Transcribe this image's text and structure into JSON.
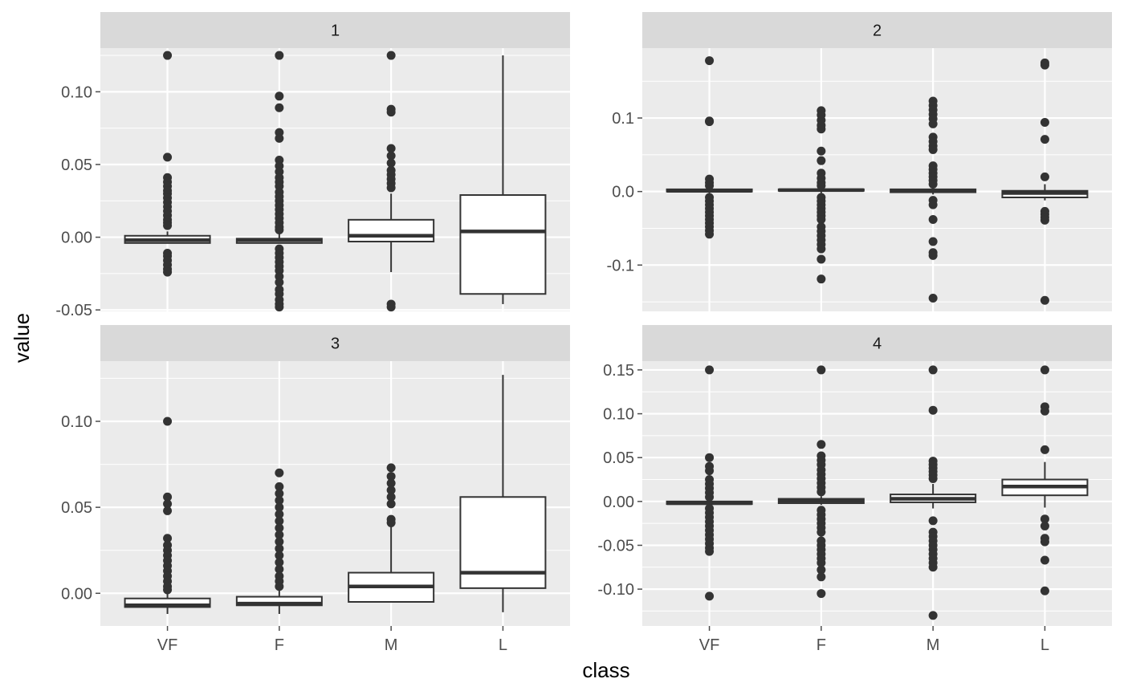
{
  "chart_data": {
    "type": "boxplot",
    "xlabel": "class",
    "ylabel": "value",
    "categories": [
      "VF",
      "F",
      "M",
      "L"
    ],
    "colors": {
      "panel_bg": "#ebebeb",
      "strip_bg": "#d9d9d9",
      "grid": "#ffffff",
      "box_fill": "#ffffff",
      "stroke": "#333333",
      "text": "#4d4d4d",
      "title_text": "#000000",
      "strip_text": "#1a1a1a"
    },
    "panels": [
      {
        "facet_label": "1",
        "ylim": [
          -0.051,
          0.13
        ],
        "yticks": [
          -0.05,
          0.0,
          0.05,
          0.1
        ],
        "ytick_labels": [
          "-0.05",
          "0.00",
          "0.05",
          "0.10"
        ],
        "boxes": [
          {
            "category": "VF",
            "lower_whisker": -0.004,
            "q1": -0.004,
            "median": -0.002,
            "q3": 0.001,
            "upper_whisker": 0.004,
            "outliers": [
              0.125,
              0.055,
              0.041,
              0.038,
              0.035,
              0.032,
              0.03,
              0.027,
              0.024,
              0.021,
              0.018,
              0.015,
              0.012,
              0.01,
              0.008,
              -0.011,
              -0.013,
              -0.016,
              -0.019,
              -0.022,
              -0.024
            ]
          },
          {
            "category": "F",
            "lower_whisker": -0.004,
            "q1": -0.004,
            "median": -0.002,
            "q3": -0.001,
            "upper_whisker": 0.003,
            "outliers": [
              0.125,
              0.097,
              0.089,
              0.072,
              0.068,
              0.053,
              0.049,
              0.045,
              0.041,
              0.038,
              0.035,
              0.031,
              0.028,
              0.025,
              0.022,
              0.019,
              0.016,
              0.013,
              0.01,
              0.007,
              0.005,
              -0.008,
              -0.011,
              -0.014,
              -0.017,
              -0.02,
              -0.023,
              -0.027,
              -0.031,
              -0.036,
              -0.039,
              -0.043,
              -0.046,
              -0.048
            ]
          },
          {
            "category": "M",
            "lower_whisker": -0.024,
            "q1": -0.003,
            "median": 0.001,
            "q3": 0.012,
            "upper_whisker": 0.03,
            "outliers": [
              0.125,
              0.088,
              0.086,
              0.061,
              0.056,
              0.051,
              0.046,
              0.043,
              0.04,
              0.037,
              0.034,
              -0.046,
              -0.048
            ]
          },
          {
            "category": "L",
            "lower_whisker": -0.046,
            "q1": -0.039,
            "median": 0.004,
            "q3": 0.029,
            "upper_whisker": 0.125,
            "outliers": []
          }
        ]
      },
      {
        "facet_label": "2",
        "ylim": [
          -0.163,
          0.195
        ],
        "yticks": [
          -0.1,
          0.0,
          0.1
        ],
        "ytick_labels": [
          "-0.1",
          "0.0",
          "0.1"
        ],
        "boxes": [
          {
            "category": "VF",
            "lower_whisker": -0.002,
            "q1": 0.0,
            "median": 0.001,
            "q3": 0.003,
            "upper_whisker": 0.006,
            "outliers": [
              0.178,
              0.096,
              0.095,
              0.017,
              0.012,
              0.008,
              -0.008,
              -0.013,
              -0.018,
              -0.023,
              -0.028,
              -0.033,
              -0.038,
              -0.043,
              -0.048,
              -0.053,
              -0.058
            ]
          },
          {
            "category": "F",
            "lower_whisker": -0.002,
            "q1": 0.001,
            "median": 0.002,
            "q3": 0.003,
            "upper_whisker": 0.006,
            "outliers": [
              0.11,
              0.104,
              0.097,
              0.09,
              0.085,
              0.055,
              0.042,
              0.025,
              0.018,
              0.012,
              0.008,
              -0.008,
              -0.013,
              -0.018,
              -0.023,
              -0.028,
              -0.033,
              -0.038,
              -0.048,
              -0.054,
              -0.06,
              -0.066,
              -0.072,
              -0.078,
              -0.092,
              -0.119
            ]
          },
          {
            "category": "M",
            "lower_whisker": -0.004,
            "q1": -0.001,
            "median": 0.001,
            "q3": 0.003,
            "upper_whisker": 0.008,
            "outliers": [
              0.123,
              0.117,
              0.111,
              0.105,
              0.099,
              0.092,
              0.074,
              0.068,
              0.062,
              0.057,
              0.035,
              0.03,
              0.025,
              0.02,
              0.015,
              0.01,
              -0.012,
              -0.018,
              -0.038,
              -0.068,
              -0.083,
              -0.087,
              -0.145
            ]
          },
          {
            "category": "L",
            "lower_whisker": -0.012,
            "q1": -0.008,
            "median": -0.002,
            "q3": 0.001,
            "upper_whisker": 0.01,
            "outliers": [
              0.175,
              0.172,
              0.094,
              0.071,
              0.02,
              -0.027,
              -0.031,
              -0.035,
              -0.039,
              -0.148
            ]
          }
        ]
      },
      {
        "facet_label": "3",
        "ylim": [
          -0.019,
          0.135
        ],
        "yticks": [
          0.0,
          0.05,
          0.1
        ],
        "ytick_labels": [
          "0.00",
          "0.05",
          "0.10"
        ],
        "boxes": [
          {
            "category": "VF",
            "lower_whisker": -0.012,
            "q1": -0.008,
            "median": -0.007,
            "q3": -0.003,
            "upper_whisker": 0.001,
            "outliers": [
              0.1,
              0.056,
              0.052,
              0.048,
              0.032,
              0.028,
              0.025,
              0.022,
              0.019,
              0.016,
              0.013,
              0.01,
              0.007,
              0.004,
              0.002
            ]
          },
          {
            "category": "F",
            "lower_whisker": -0.012,
            "q1": -0.007,
            "median": -0.006,
            "q3": -0.002,
            "upper_whisker": 0.003,
            "outliers": [
              0.07,
              0.062,
              0.058,
              0.054,
              0.05,
              0.046,
              0.042,
              0.038,
              0.034,
              0.03,
              0.026,
              0.022,
              0.018,
              0.014,
              0.01,
              0.007,
              0.004
            ]
          },
          {
            "category": "M",
            "lower_whisker": -0.005,
            "q1": -0.005,
            "median": 0.004,
            "q3": 0.012,
            "upper_whisker": 0.04,
            "outliers": [
              0.073,
              0.068,
              0.064,
              0.06,
              0.056,
              0.052,
              0.043,
              0.041
            ]
          },
          {
            "category": "L",
            "lower_whisker": -0.011,
            "q1": 0.003,
            "median": 0.012,
            "q3": 0.056,
            "upper_whisker": 0.127,
            "outliers": []
          }
        ]
      },
      {
        "facet_label": "4",
        "ylim": [
          -0.142,
          0.16
        ],
        "yticks": [
          -0.1,
          -0.05,
          0.0,
          0.05,
          0.1,
          0.15
        ],
        "ytick_labels": [
          "-0.10",
          "-0.05",
          "0.00",
          "0.05",
          "0.10",
          "0.15"
        ],
        "boxes": [
          {
            "category": "VF",
            "lower_whisker": -0.004,
            "q1": -0.003,
            "median": -0.002,
            "q3": 0.0,
            "upper_whisker": 0.003,
            "outliers": [
              0.15,
              0.05,
              0.04,
              0.035,
              0.025,
              0.02,
              0.015,
              0.01,
              0.005,
              -0.008,
              -0.013,
              -0.018,
              -0.023,
              -0.028,
              -0.033,
              -0.038,
              -0.043,
              -0.048,
              -0.053,
              -0.057,
              -0.108
            ]
          },
          {
            "category": "F",
            "lower_whisker": -0.004,
            "q1": -0.002,
            "median": 0.001,
            "q3": 0.003,
            "upper_whisker": 0.006,
            "outliers": [
              0.15,
              0.065,
              0.052,
              0.047,
              0.042,
              0.036,
              0.031,
              0.026,
              0.021,
              0.016,
              0.011,
              -0.01,
              -0.015,
              -0.02,
              -0.025,
              -0.03,
              -0.035,
              -0.045,
              -0.05,
              -0.055,
              -0.06,
              -0.065,
              -0.07,
              -0.078,
              -0.086,
              -0.105
            ]
          },
          {
            "category": "M",
            "lower_whisker": -0.008,
            "q1": -0.001,
            "median": 0.003,
            "q3": 0.008,
            "upper_whisker": 0.02,
            "outliers": [
              0.15,
              0.104,
              0.046,
              0.042,
              0.038,
              0.034,
              0.03,
              0.026,
              -0.022,
              -0.035,
              -0.04,
              -0.045,
              -0.05,
              -0.055,
              -0.06,
              -0.065,
              -0.07,
              -0.075,
              -0.13
            ]
          },
          {
            "category": "L",
            "lower_whisker": -0.007,
            "q1": 0.007,
            "median": 0.017,
            "q3": 0.025,
            "upper_whisker": 0.045,
            "outliers": [
              0.15,
              0.108,
              0.103,
              0.059,
              -0.02,
              -0.028,
              -0.042,
              -0.046,
              -0.067,
              -0.102
            ]
          }
        ]
      }
    ]
  }
}
